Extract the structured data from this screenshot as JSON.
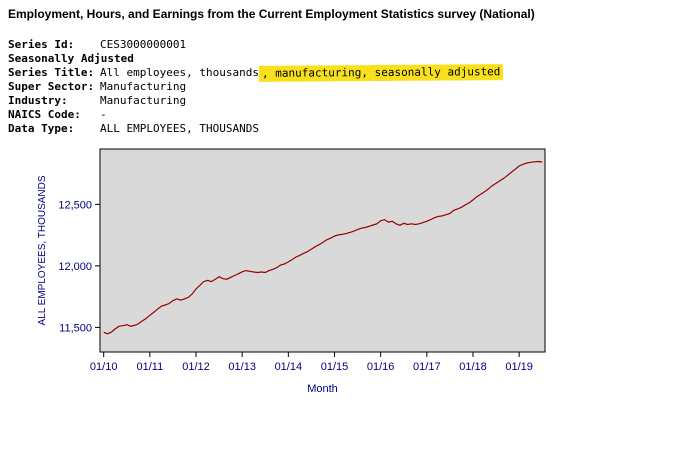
{
  "page": {
    "title": "Employment, Hours, and Earnings from the Current Employment Statistics survey (National)"
  },
  "metadata": {
    "series_id_label": "Series Id:",
    "series_id": "CES3000000001",
    "seasonal_label": "Seasonally Adjusted",
    "series_title_label": "Series Title:",
    "series_title_plain": "All employees, thousands",
    "series_title_highlight": ", manufacturing, seasonally adjusted",
    "super_sector_label": "Super Sector:",
    "super_sector": "Manufacturing",
    "industry_label": "Industry:",
    "industry": "Manufacturing",
    "naics_label": "NAICS Code:",
    "naics": "-",
    "data_type_label": "Data Type:",
    "data_type": "ALL EMPLOYEES, THOUSANDS"
  },
  "colors": {
    "highlight": "#f8e11c",
    "line": "#990000",
    "plot_background": "#d9d9d9",
    "axis_text": "#000080",
    "plot_border": "#000000"
  },
  "chart_data": {
    "type": "line",
    "title": "",
    "xlabel": "Month",
    "ylabel": "ALL EMPLOYEES, THOUSANDS",
    "grid": false,
    "legend": "none",
    "plot_background": "#d9d9d9",
    "ylim": [
      11300,
      12950
    ],
    "xlim": [
      2009.92,
      2019.56
    ],
    "y_ticks": [
      11500,
      12000,
      12500
    ],
    "y_tick_labels": [
      "11,500",
      "12,000",
      "12,500"
    ],
    "x_ticks": [
      2010,
      2011,
      2012,
      2013,
      2014,
      2015,
      2016,
      2017,
      2018,
      2019
    ],
    "x_tick_labels": [
      "01/10",
      "01/11",
      "01/12",
      "01/13",
      "01/14",
      "01/15",
      "01/16",
      "01/17",
      "01/18",
      "01/19"
    ],
    "x_start": 2010.0,
    "frequency": "monthly",
    "series": [
      {
        "name": "All Employees, Thousands, Manufacturing, Seasonally Adjusted",
        "color": "#990000",
        "values": [
          11460,
          11448,
          11462,
          11488,
          11510,
          11514,
          11522,
          11510,
          11516,
          11528,
          11552,
          11572,
          11598,
          11622,
          11648,
          11672,
          11682,
          11694,
          11718,
          11732,
          11722,
          11732,
          11744,
          11772,
          11812,
          11842,
          11872,
          11882,
          11872,
          11892,
          11912,
          11896,
          11892,
          11906,
          11922,
          11936,
          11952,
          11962,
          11956,
          11950,
          11946,
          11950,
          11946,
          11962,
          11972,
          11986,
          12006,
          12016,
          12032,
          12052,
          12072,
          12086,
          12102,
          12116,
          12136,
          12156,
          12172,
          12192,
          12212,
          12226,
          12242,
          12252,
          12256,
          12262,
          12272,
          12282,
          12296,
          12306,
          12312,
          12322,
          12332,
          12342,
          12366,
          12376,
          12356,
          12362,
          12342,
          12330,
          12346,
          12336,
          12342,
          12336,
          12342,
          12352,
          12362,
          12376,
          12392,
          12402,
          12406,
          12416,
          12426,
          12452,
          12462,
          12476,
          12496,
          12512,
          12536,
          12562,
          12582,
          12602,
          12626,
          12652,
          12672,
          12692,
          12712,
          12736,
          12762,
          12786,
          12812,
          12826,
          12836,
          12842,
          12846,
          12848,
          12844
        ]
      }
    ]
  }
}
